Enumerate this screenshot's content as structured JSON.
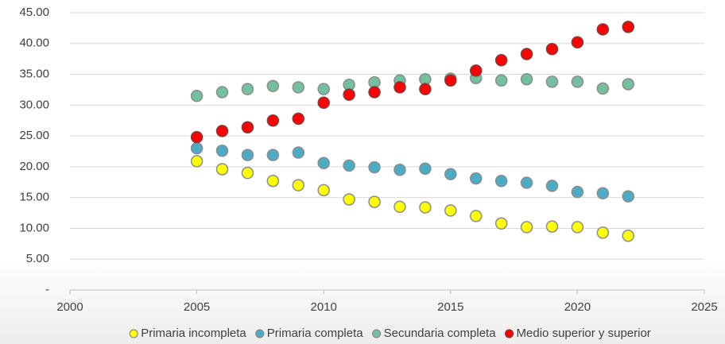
{
  "chart_data": {
    "type": "scatter",
    "x": [
      2005,
      2006,
      2007,
      2008,
      2009,
      2010,
      2011,
      2012,
      2013,
      2014,
      2015,
      2016,
      2017,
      2018,
      2019,
      2020,
      2021,
      2022
    ],
    "series": [
      {
        "name": "Primaria incompleta",
        "color": "#ffff00",
        "values": [
          20.9,
          19.6,
          19.0,
          17.7,
          17.0,
          16.2,
          14.7,
          14.3,
          13.5,
          13.4,
          12.9,
          12.0,
          10.8,
          10.2,
          10.3,
          10.2,
          9.3,
          8.8
        ]
      },
      {
        "name": "Primaria completa",
        "color": "#4bacc6",
        "values": [
          23.0,
          22.6,
          21.9,
          21.9,
          22.3,
          20.6,
          20.2,
          19.9,
          19.5,
          19.7,
          18.8,
          18.1,
          17.7,
          17.4,
          16.9,
          15.9,
          15.7,
          15.2
        ]
      },
      {
        "name": "Secundaria completa",
        "color": "#72c09e",
        "values": [
          31.5,
          32.1,
          32.6,
          33.1,
          32.9,
          32.6,
          33.3,
          33.7,
          34.0,
          34.2,
          34.3,
          34.4,
          34.0,
          34.2,
          33.8,
          33.8,
          32.7,
          33.4
        ]
      },
      {
        "name": "Medio superior y superior",
        "color": "#ff0000",
        "values": [
          24.8,
          25.8,
          26.4,
          27.5,
          27.8,
          30.4,
          31.7,
          32.1,
          32.9,
          32.6,
          34.0,
          35.6,
          37.3,
          38.3,
          39.1,
          40.2,
          42.3,
          42.7
        ]
      }
    ],
    "xlim": [
      2000,
      2025
    ],
    "xticks": [
      2000,
      2005,
      2010,
      2015,
      2020,
      2025
    ],
    "ylim": [
      0,
      45
    ],
    "yticks": [
      {
        "value": 0,
        "label": "-"
      },
      {
        "value": 5,
        "label": "5.00"
      },
      {
        "value": 10,
        "label": "10.00"
      },
      {
        "value": 15,
        "label": "15.00"
      },
      {
        "value": 20,
        "label": "20.00"
      },
      {
        "value": 25,
        "label": "25.00"
      },
      {
        "value": 30,
        "label": "30.00"
      },
      {
        "value": 35,
        "label": "35.00"
      },
      {
        "value": 40,
        "label": "40.00"
      },
      {
        "value": 45,
        "label": "45.00"
      }
    ],
    "grid": true,
    "legend": "bottom"
  }
}
